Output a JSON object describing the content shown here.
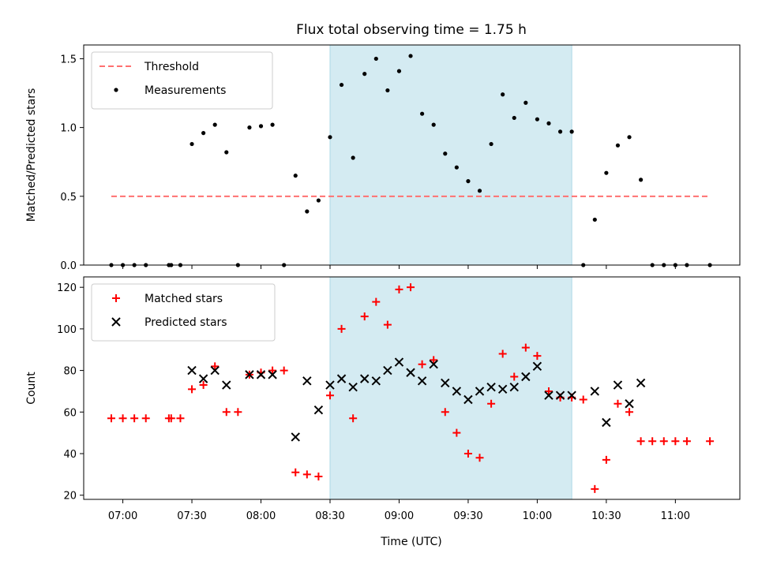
{
  "title": "Flux total observing time = 1.75 h",
  "xlabel": "Time (UTC)",
  "x_ticks": [
    "07:00",
    "07:30",
    "08:00",
    "08:30",
    "09:00",
    "09:30",
    "10:00",
    "10:30",
    "11:00"
  ],
  "shaded_interval": {
    "start": "08:30",
    "end": "10:15",
    "color": "#add8e6"
  },
  "chart_data": [
    {
      "type": "scatter",
      "ylabel": "Matched/Predicted stars",
      "ylim": [
        0,
        1.6
      ],
      "y_ticks": [
        "0.0",
        "0.5",
        "1.0",
        "1.5"
      ],
      "legend_position": "top-left",
      "threshold": {
        "name": "Threshold",
        "value": 0.5,
        "x_start": "06:55",
        "x_end": "11:15",
        "color": "#ff7070"
      },
      "series": [
        {
          "name": "Measurements",
          "color": "#000000",
          "marker": "dot",
          "x": [
            "06:55",
            "07:00",
            "07:05",
            "07:10",
            "07:20",
            "07:21",
            "07:25",
            "07:30",
            "07:35",
            "07:40",
            "07:45",
            "07:50",
            "07:55",
            "08:00",
            "08:05",
            "08:10",
            "08:15",
            "08:20",
            "08:25",
            "08:30",
            "08:35",
            "08:40",
            "08:45",
            "08:50",
            "08:55",
            "09:00",
            "09:05",
            "09:10",
            "09:15",
            "09:20",
            "09:25",
            "09:30",
            "09:35",
            "09:40",
            "09:45",
            "09:50",
            "09:55",
            "10:00",
            "10:05",
            "10:10",
            "10:15",
            "10:20",
            "10:25",
            "10:30",
            "10:35",
            "10:40",
            "10:45",
            "10:50",
            "10:55",
            "11:00",
            "11:05",
            "11:15"
          ],
          "y": [
            0,
            0,
            0,
            0,
            0,
            0,
            0,
            0.88,
            0.96,
            1.02,
            0.82,
            0,
            1.0,
            1.01,
            1.02,
            0,
            0.65,
            0.39,
            0.47,
            0.93,
            1.31,
            0.78,
            1.39,
            1.5,
            1.27,
            1.41,
            1.52,
            1.1,
            1.02,
            0.81,
            0.71,
            0.61,
            0.54,
            0.88,
            1.24,
            1.07,
            1.18,
            1.06,
            1.03,
            0.97,
            0.97,
            0,
            0.33,
            0.67,
            0.87,
            0.93,
            0.62,
            0,
            0,
            0,
            0,
            0
          ]
        }
      ]
    },
    {
      "type": "scatter",
      "ylabel": "Count",
      "ylim": [
        18,
        125
      ],
      "y_ticks": [
        "20",
        "40",
        "60",
        "80",
        "100",
        "120"
      ],
      "legend_position": "top-left",
      "series": [
        {
          "name": "Matched stars",
          "color": "#ff0000",
          "marker": "plus",
          "x": [
            "06:55",
            "07:00",
            "07:05",
            "07:10",
            "07:20",
            "07:21",
            "07:25",
            "07:30",
            "07:35",
            "07:40",
            "07:45",
            "07:50",
            "07:55",
            "08:00",
            "08:05",
            "08:10",
            "08:15",
            "08:20",
            "08:25",
            "08:30",
            "08:35",
            "08:40",
            "08:45",
            "08:50",
            "08:55",
            "09:00",
            "09:05",
            "09:10",
            "09:15",
            "09:20",
            "09:25",
            "09:30",
            "09:35",
            "09:40",
            "09:45",
            "09:50",
            "09:55",
            "10:00",
            "10:05",
            "10:10",
            "10:15",
            "10:20",
            "10:25",
            "10:30",
            "10:35",
            "10:40",
            "10:45",
            "10:50",
            "10:55",
            "11:00",
            "11:05",
            "11:15"
          ],
          "y": [
            57,
            57,
            57,
            57,
            57,
            57,
            57,
            71,
            73,
            82,
            60,
            60,
            78,
            79,
            80,
            80,
            31,
            30,
            29,
            68,
            100,
            57,
            106,
            113,
            102,
            119,
            120,
            83,
            85,
            60,
            50,
            40,
            38,
            64,
            88,
            77,
            91,
            87,
            70,
            67,
            67,
            66,
            23,
            37,
            64,
            60,
            46,
            46,
            46,
            46,
            46,
            46
          ]
        },
        {
          "name": "Predicted stars",
          "color": "#000000",
          "marker": "x",
          "x": [
            "07:30",
            "07:35",
            "07:40",
            "07:45",
            "07:55",
            "08:00",
            "08:05",
            "08:15",
            "08:20",
            "08:25",
            "08:30",
            "08:35",
            "08:40",
            "08:45",
            "08:50",
            "08:55",
            "09:00",
            "09:05",
            "09:10",
            "09:15",
            "09:20",
            "09:25",
            "09:30",
            "09:35",
            "09:40",
            "09:45",
            "09:50",
            "09:55",
            "10:00",
            "10:05",
            "10:10",
            "10:15",
            "10:25",
            "10:30",
            "10:35",
            "10:40",
            "10:45"
          ],
          "y": [
            80,
            76,
            80,
            73,
            78,
            78,
            78,
            48,
            75,
            61,
            73,
            76,
            72,
            76,
            75,
            80,
            84,
            79,
            75,
            83,
            74,
            70,
            66,
            70,
            72,
            71,
            72,
            77,
            82,
            68,
            68,
            68,
            70,
            55,
            73,
            64,
            74
          ]
        }
      ]
    }
  ]
}
